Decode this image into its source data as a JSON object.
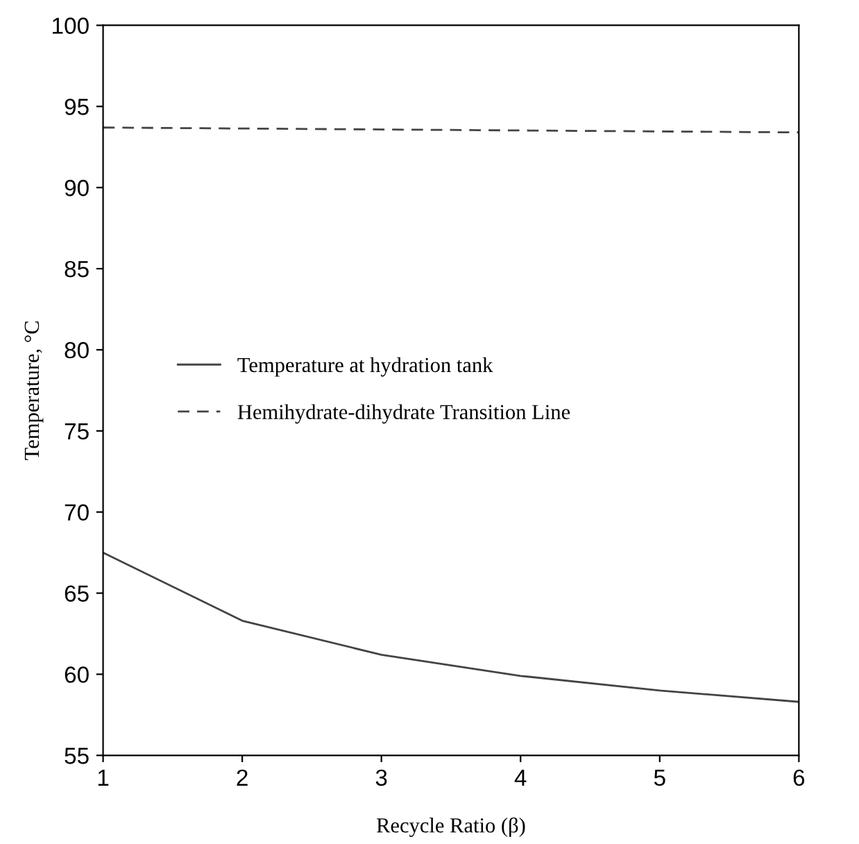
{
  "chart_data": {
    "type": "line",
    "xlabel": "Recycle Ratio (β)",
    "ylabel": "Temperature, °C",
    "x": [
      1,
      2,
      3,
      4,
      5,
      6
    ],
    "series": [
      {
        "name": "Temperature at hydration tank",
        "color": "#444444",
        "values": [
          67.5,
          63.3,
          61.2,
          59.9,
          59.0,
          58.3
        ],
        "line_style": "solid"
      },
      {
        "name": "Hemihydrate-dihydrate Transition Line",
        "color": "#444444",
        "x": [
          1,
          6
        ],
        "values": [
          93.7,
          93.4
        ],
        "line_style": "dashed"
      }
    ],
    "xlim": [
      1,
      6
    ],
    "xticks": [
      1,
      2,
      3,
      4,
      5,
      6
    ],
    "ylim": [
      55,
      100
    ],
    "yticks": [
      55,
      60,
      65,
      70,
      75,
      80,
      85,
      90,
      95,
      100
    ],
    "grid": false,
    "legend": "left",
    "marker": "none"
  }
}
